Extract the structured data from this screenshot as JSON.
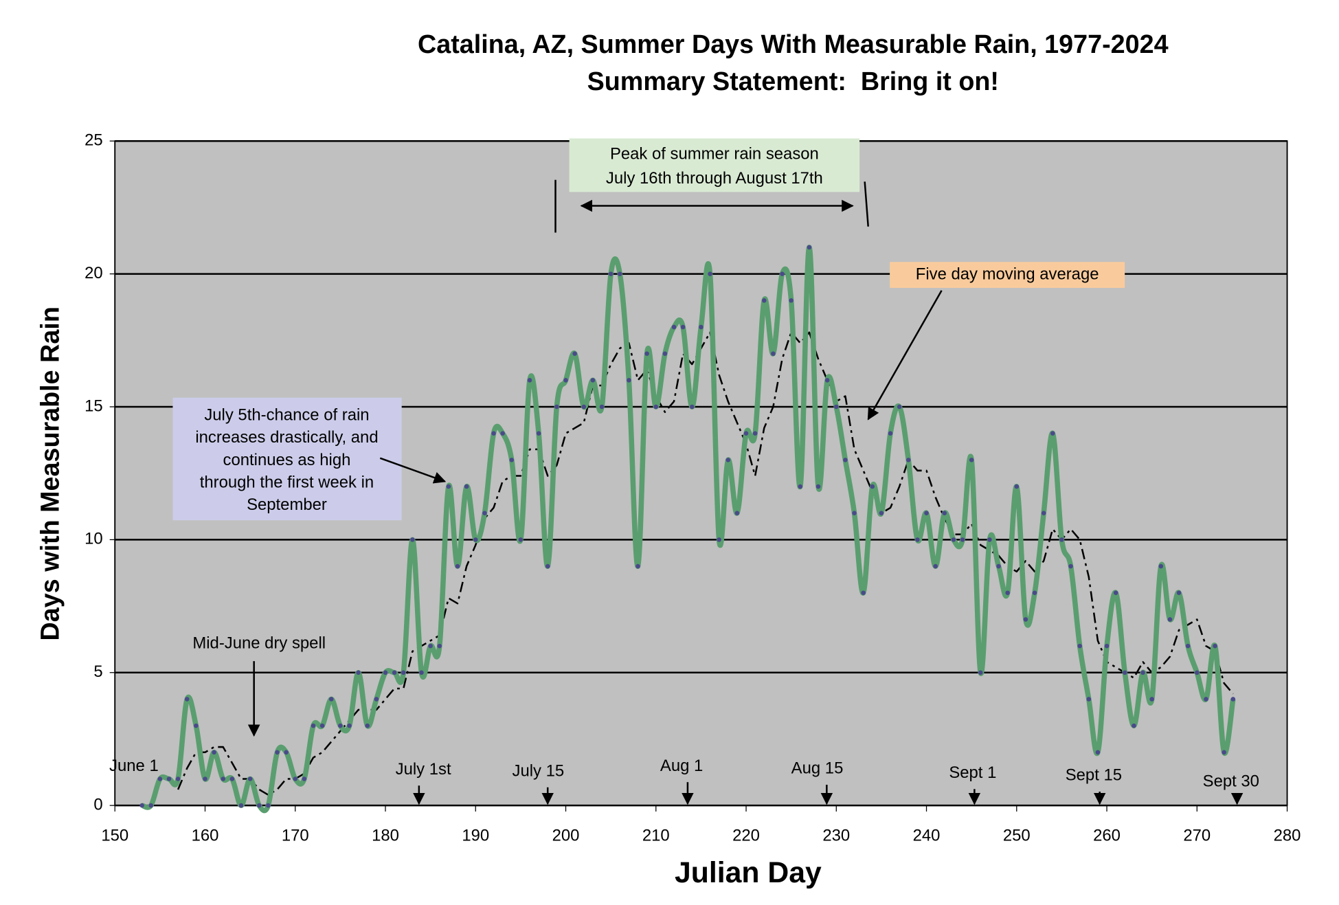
{
  "chart_data": {
    "type": "line",
    "title": [
      "Catalina, AZ, Summer Days With Measurable Rain, 1977-2024",
      "Summary Statement:  Bring it on!"
    ],
    "xlabel": "Julian Day",
    "ylabel": "Days with Measurable Rain",
    "xlim": [
      150,
      280
    ],
    "xticks": [
      150,
      160,
      170,
      180,
      190,
      200,
      210,
      220,
      230,
      240,
      250,
      260,
      270,
      280
    ],
    "ylim": [
      0,
      25
    ],
    "yticks": [
      0,
      5,
      10,
      15,
      20,
      25
    ],
    "grid": true,
    "background": "#c0c0c0",
    "series": [
      {
        "color": "#5a9e6f",
        "marker_color": "#4a4a8a",
        "style": "solid",
        "x": [
          153,
          154,
          155,
          156,
          157,
          158,
          159,
          160,
          161,
          162,
          163,
          164,
          165,
          166,
          167,
          168,
          169,
          170,
          171,
          172,
          173,
          174,
          175,
          176,
          177,
          178,
          179,
          180,
          181,
          182,
          183,
          184,
          185,
          186,
          187,
          188,
          189,
          190,
          191,
          192,
          193,
          194,
          195,
          196,
          197,
          198,
          199,
          200,
          201,
          202,
          203,
          204,
          205,
          206,
          207,
          208,
          209,
          210,
          211,
          212,
          213,
          214,
          215,
          216,
          217,
          218,
          219,
          220,
          221,
          222,
          223,
          224,
          225,
          226,
          227,
          228,
          229,
          230,
          231,
          232,
          233,
          234,
          235,
          236,
          237,
          238,
          239,
          240,
          241,
          242,
          243,
          244,
          245,
          246,
          247,
          248,
          249,
          250,
          251,
          252,
          253,
          254,
          255,
          256,
          257,
          258,
          259,
          260,
          261,
          262,
          263,
          264,
          265,
          266,
          267,
          268,
          269,
          270,
          271,
          272,
          273,
          274
        ],
        "values": [
          0,
          0,
          1,
          1,
          1,
          4,
          3,
          1,
          2,
          1,
          1,
          0,
          1,
          0,
          0,
          2,
          2,
          1,
          1,
          3,
          3,
          4,
          3,
          3,
          5,
          3,
          4,
          5,
          5,
          5,
          10,
          5,
          6,
          6,
          12,
          9,
          12,
          10,
          11,
          14,
          14,
          13,
          10,
          16,
          14,
          9,
          15,
          16,
          17,
          15,
          16,
          15,
          20,
          20,
          16,
          9,
          17,
          15,
          17,
          18,
          18,
          15,
          18,
          20,
          10,
          13,
          11,
          14,
          14,
          19,
          17,
          20,
          19,
          12,
          21,
          12,
          16,
          15,
          13,
          11,
          8,
          12,
          11,
          14,
          15,
          13,
          10,
          11,
          9,
          11,
          10,
          10,
          13,
          5,
          10,
          9,
          8,
          12,
          7,
          8,
          11,
          14,
          10,
          9,
          6,
          4,
          2,
          6,
          8,
          5,
          3,
          5,
          4,
          9,
          7,
          8,
          6,
          5,
          4,
          6,
          2,
          4
        ]
      },
      {
        "color": "#000000",
        "style": "dashdot",
        "x": [
          157,
          158,
          159,
          160,
          161,
          162,
          163,
          164,
          165,
          166,
          167,
          168,
          169,
          170,
          171,
          172,
          173,
          174,
          175,
          176,
          177,
          178,
          179,
          180,
          181,
          182,
          183,
          184,
          185,
          186,
          187,
          188,
          189,
          190,
          191,
          192,
          193,
          194,
          195,
          196,
          197,
          198,
          199,
          200,
          201,
          202,
          203,
          204,
          205,
          206,
          207,
          208,
          209,
          210,
          211,
          212,
          213,
          214,
          215,
          216,
          217,
          218,
          219,
          220,
          221,
          222,
          223,
          224,
          225,
          226,
          227,
          228,
          229,
          230,
          231,
          232,
          233,
          234,
          235,
          236,
          237,
          238,
          239,
          240,
          241,
          242,
          243,
          244,
          245,
          246,
          247,
          248,
          249,
          250,
          251,
          252,
          253,
          254,
          255,
          256,
          257,
          258,
          259,
          260,
          261,
          262,
          263,
          264,
          265,
          266,
          267,
          268,
          269,
          270,
          271,
          272,
          273,
          274
        ],
        "values": [
          0.6,
          1.4,
          2,
          2,
          2.2,
          2.2,
          1.6,
          1,
          1,
          0.6,
          0.4,
          0.6,
          1,
          1,
          1.2,
          1.8,
          2,
          2.4,
          2.8,
          3.2,
          3.6,
          3.6,
          3.6,
          4,
          4.4,
          4.4,
          5.8,
          6,
          6.2,
          6.4,
          7.8,
          7.6,
          9,
          9.8,
          10.8,
          11.2,
          12.2,
          12.4,
          12.4,
          13.4,
          13.4,
          12.4,
          12.8,
          14,
          14.2,
          14.4,
          15.8,
          15.8,
          16.6,
          17.2,
          17.4,
          16,
          16.4,
          15.4,
          14.8,
          15.2,
          17,
          16.6,
          17.2,
          17.8,
          16.2,
          15.2,
          14.4,
          13.6,
          12.4,
          14.2,
          15,
          16.8,
          17.8,
          17.4,
          17.8,
          16.8,
          16,
          15.2,
          15.4,
          13.4,
          12.6,
          11.8,
          11,
          11.2,
          12,
          13,
          12.6,
          12.6,
          11.6,
          10.8,
          10.2,
          10.2,
          10.6,
          9.8,
          9.6,
          9.4,
          9,
          8.8,
          9.2,
          8.8,
          9.2,
          10.4,
          10,
          10.4,
          10,
          8.6,
          6.2,
          5.4,
          5.2,
          5,
          4.8,
          5.4,
          5,
          5.2,
          5.6,
          6.6,
          6.8,
          7,
          6,
          5.8,
          4.6,
          4.2
        ]
      }
    ],
    "annotations": {
      "peak": [
        "Peak of summer rain season",
        "July 16th through August 17th"
      ],
      "july5": [
        "July 5th-chance of rain",
        "increases drastically, and",
        "continues as high",
        "through the first week in",
        "September"
      ],
      "moving_average": "Five day moving average",
      "dry_spell": "Mid-June dry spell",
      "dates": [
        "June 1",
        "July 1st",
        "July 15",
        "Aug 1",
        "Aug 15",
        "Sept 1",
        "Sept 15",
        "Sept 30"
      ]
    }
  }
}
